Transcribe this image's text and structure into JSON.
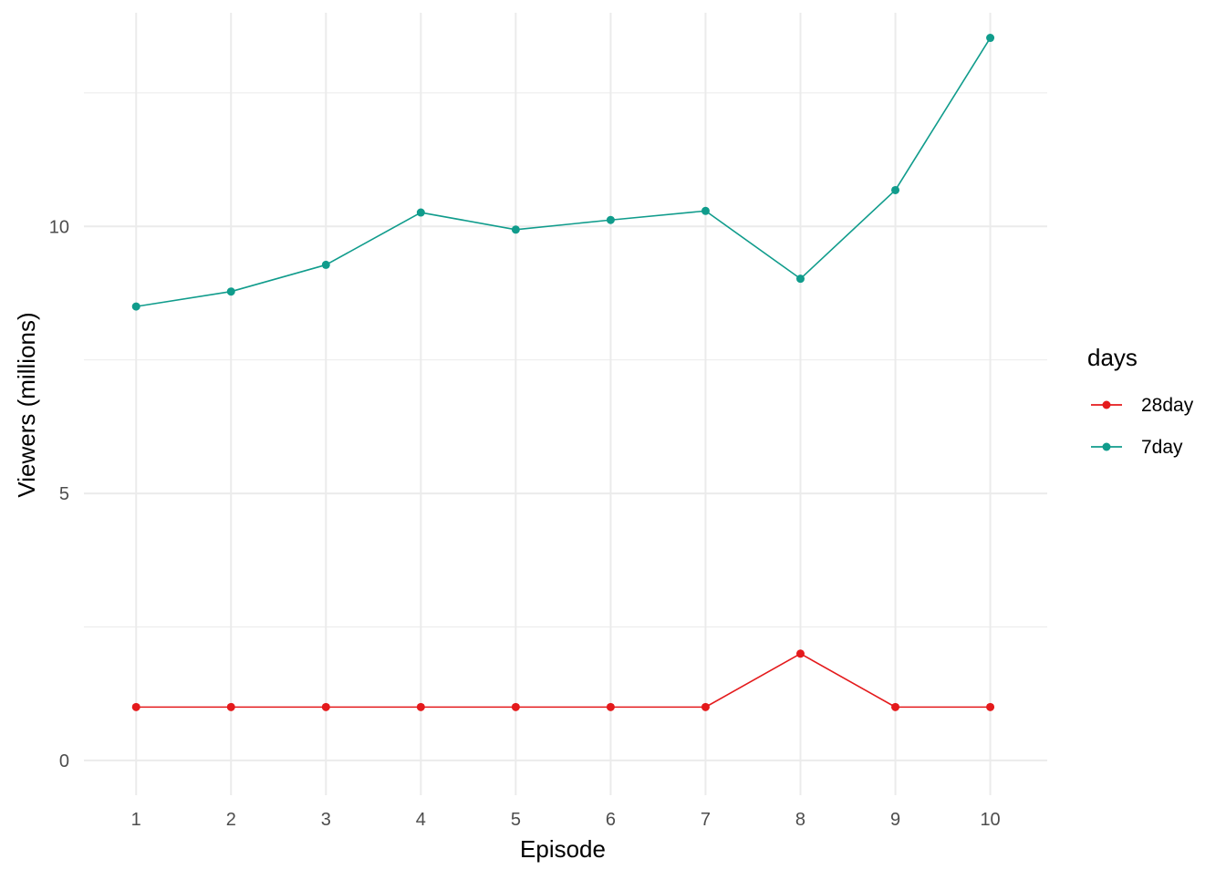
{
  "chart_data": {
    "type": "line",
    "title": "",
    "xlabel": "Episode",
    "ylabel": "Viewers (millions)",
    "x": [
      1,
      2,
      3,
      4,
      5,
      6,
      7,
      8,
      9,
      10
    ],
    "x_tick_labels": [
      "1",
      "2",
      "3",
      "4",
      "5",
      "6",
      "7",
      "8",
      "9",
      "10"
    ],
    "y_ticks": [
      0,
      5,
      10
    ],
    "y_tick_labels": [
      "0",
      "5",
      "10"
    ],
    "xlim": [
      0.45,
      10.6
    ],
    "ylim": [
      -0.65,
      14.0
    ],
    "grid": true,
    "legend": {
      "title": "days",
      "position": "right"
    },
    "series": [
      {
        "name": "28day",
        "color": "#E41A1C",
        "values": [
          1,
          1,
          1,
          1,
          1,
          1,
          1,
          2,
          1,
          1
        ]
      },
      {
        "name": "7day",
        "color": "#109C8C",
        "values": [
          8.5,
          8.78,
          9.28,
          10.26,
          9.94,
          10.12,
          10.29,
          9.02,
          10.68,
          13.53
        ]
      }
    ]
  }
}
